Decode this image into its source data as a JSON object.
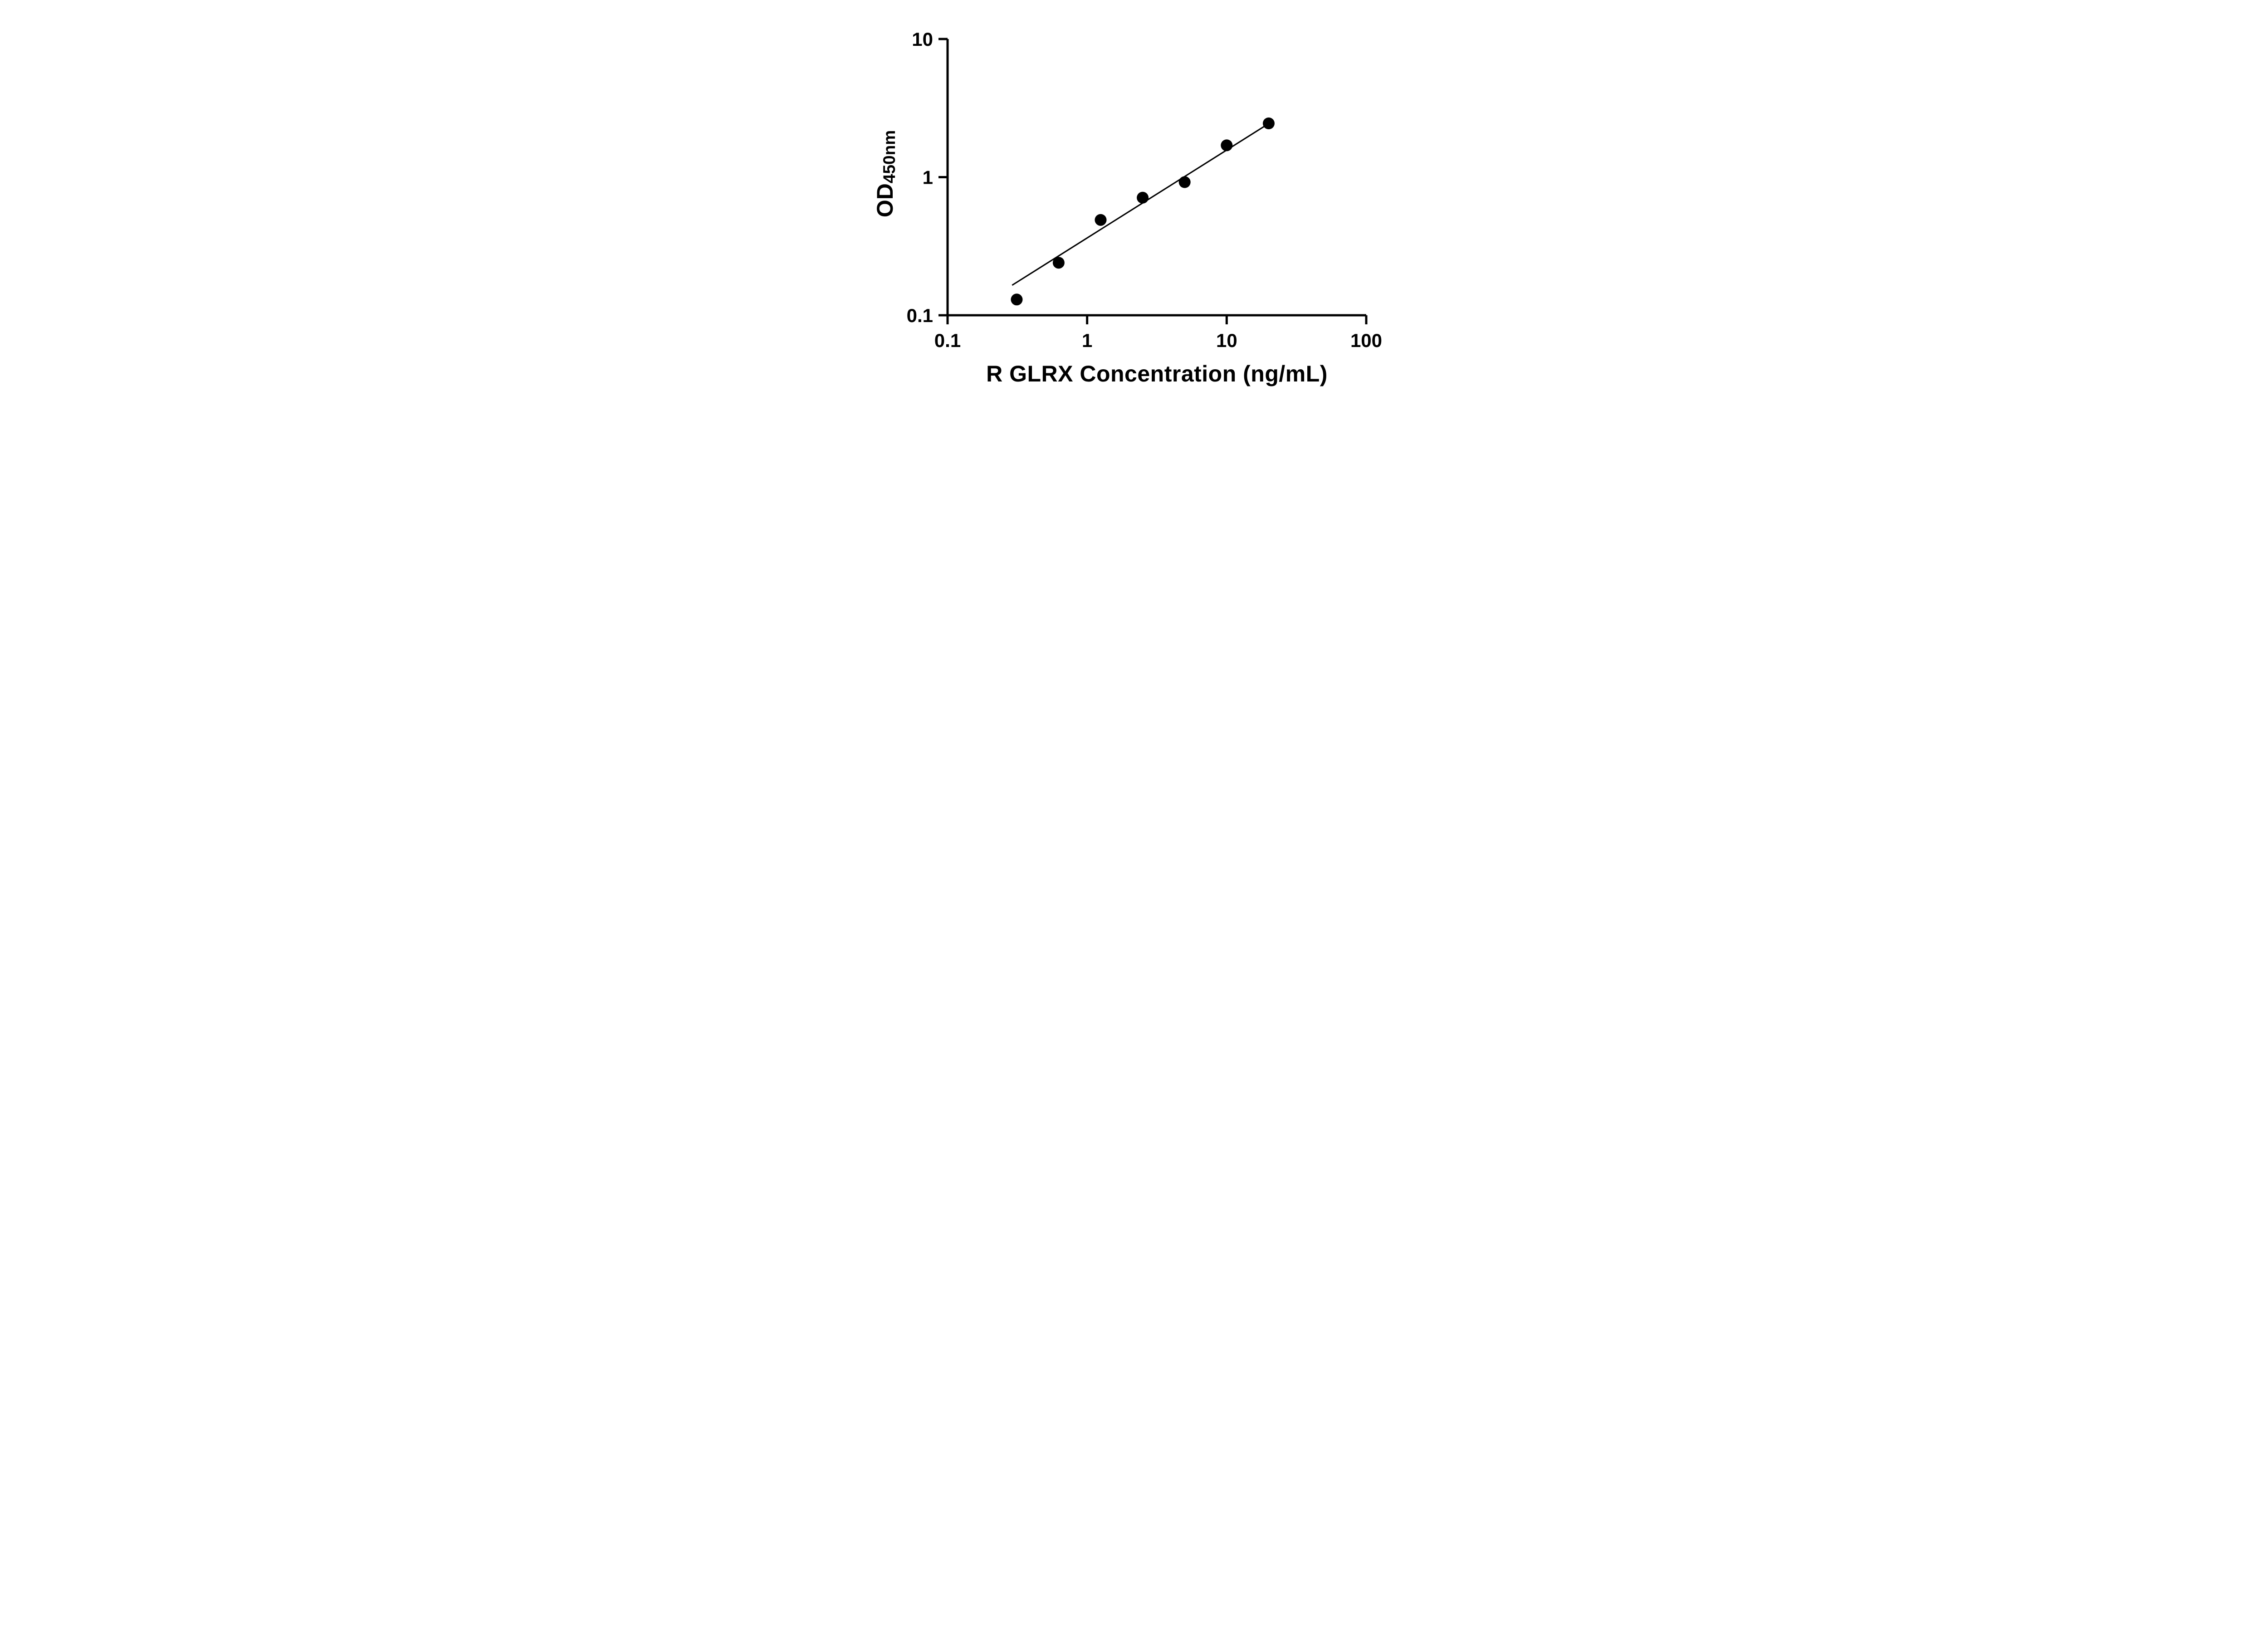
{
  "chart_data": {
    "type": "scatter",
    "title": "",
    "xlabel": "R GLRX Concentration (ng/mL)",
    "ylabel_main": "OD",
    "ylabel_sub": "450nm",
    "xscale": "log",
    "yscale": "log",
    "xlim": [
      0.1,
      100
    ],
    "ylim": [
      0.1,
      10
    ],
    "x_ticks": [
      0.1,
      1,
      10,
      100
    ],
    "x_tick_labels": [
      "0.1",
      "1",
      "10",
      "100"
    ],
    "y_ticks": [
      0.1,
      1,
      10
    ],
    "y_tick_labels": [
      "0.1",
      "1",
      "10"
    ],
    "points": {
      "x": [
        0.313,
        0.625,
        1.25,
        2.5,
        5,
        10,
        20
      ],
      "y": [
        0.13,
        0.24,
        0.49,
        0.71,
        0.92,
        1.7,
        2.45
      ]
    },
    "trendline": {
      "x_start": 0.29,
      "y_start": 0.165,
      "x_end": 20.5,
      "y_end": 2.48
    },
    "marker_color": "#000000",
    "marker_size": 13,
    "line_color": "#000000",
    "axis_color": "#000000",
    "background": "#ffffff",
    "grid": false,
    "legend": false
  }
}
